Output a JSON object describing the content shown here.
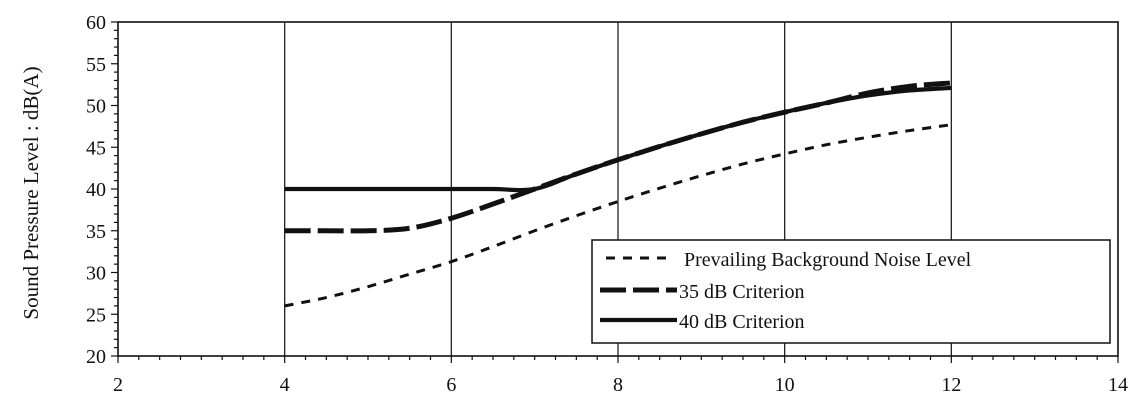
{
  "chart_data": {
    "type": "line",
    "title": "",
    "xlabel": "",
    "ylabel": "Sound Pressure Level : dB(A)",
    "xlim": [
      2,
      14
    ],
    "ylim": [
      20,
      60
    ],
    "xticks": [
      2,
      4,
      6,
      8,
      10,
      12,
      14
    ],
    "yticks": [
      20,
      25,
      30,
      35,
      40,
      45,
      50,
      55,
      60
    ],
    "grid": "vertical",
    "legend_position": "bottom-right",
    "series": [
      {
        "name": "Prevailing Background Noise Level",
        "style": "dotted",
        "x": [
          4,
          4.5,
          5,
          5.5,
          6,
          6.5,
          7,
          7.5,
          8,
          8.5,
          9,
          9.5,
          10,
          10.5,
          11,
          11.5,
          12
        ],
        "y": [
          26,
          27,
          28.3,
          29.8,
          31.3,
          33.1,
          35,
          36.8,
          38.5,
          40.1,
          41.6,
          43,
          44.2,
          45.3,
          46.2,
          47,
          47.7
        ]
      },
      {
        "name": "35 dB Criterion",
        "style": "dashed",
        "x": [
          4,
          4.5,
          5,
          5.5,
          6,
          6.5,
          7,
          7.5,
          8,
          8.5,
          9,
          9.5,
          10,
          10.5,
          11,
          11.5,
          12
        ],
        "y": [
          35,
          35,
          35,
          35.3,
          36.5,
          38.2,
          40,
          41.8,
          43.5,
          45.1,
          46.6,
          48,
          49.2,
          50.3,
          51.5,
          52.3,
          52.7
        ]
      },
      {
        "name": "40 dB Criterion",
        "style": "solid",
        "x": [
          4,
          4.5,
          5,
          5.5,
          6,
          6.5,
          7,
          7.5,
          8,
          8.5,
          9,
          9.5,
          10,
          10.5,
          11,
          11.5,
          12
        ],
        "y": [
          40,
          40,
          40,
          40,
          40,
          40,
          40,
          41.8,
          43.5,
          45.1,
          46.6,
          48,
          49.2,
          50.3,
          51.2,
          51.8,
          52.1
        ]
      }
    ]
  }
}
